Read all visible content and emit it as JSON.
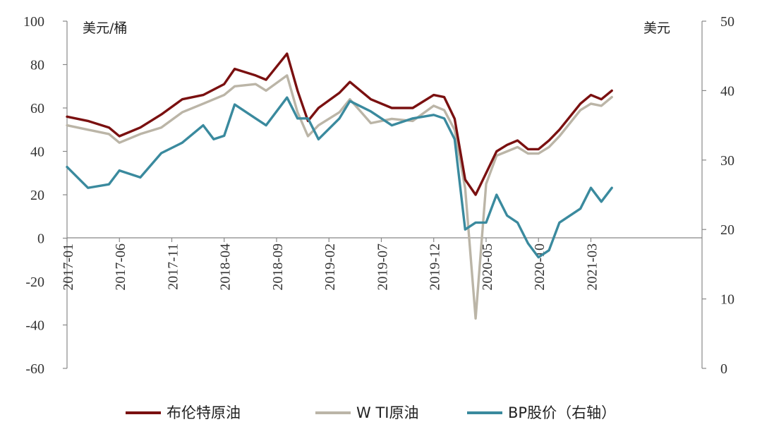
{
  "chart_data": {
    "type": "line",
    "left_axis": {
      "unit": "美元/桶",
      "range": [
        -60,
        100
      ],
      "ticks": [
        "100",
        "80",
        "60",
        "40",
        "20",
        "0",
        "-20",
        "-40",
        "-60"
      ]
    },
    "right_axis": {
      "unit": "美元",
      "range": [
        0,
        50
      ],
      "ticks": [
        "50",
        "40",
        "30",
        "20",
        "10",
        "0"
      ]
    },
    "x_axis": {
      "ticks": [
        "2017-01",
        "2017-06",
        "2017-11",
        "2018-04",
        "2018-09",
        "2019-02",
        "2019-07",
        "2019-12",
        "2020-05",
        "2020-10",
        "2021-03"
      ]
    },
    "grid": false,
    "legend_position": "bottom",
    "series": [
      {
        "name": "布伦特原油",
        "axis": "left",
        "color": "#7a1010",
        "points": [
          [
            "2017-01",
            56
          ],
          [
            "2017-03",
            54
          ],
          [
            "2017-05",
            51
          ],
          [
            "2017-06",
            47
          ],
          [
            "2017-08",
            51
          ],
          [
            "2017-10",
            57
          ],
          [
            "2017-12",
            64
          ],
          [
            "2018-02",
            66
          ],
          [
            "2018-04",
            71
          ],
          [
            "2018-05",
            78
          ],
          [
            "2018-07",
            75
          ],
          [
            "2018-08",
            73
          ],
          [
            "2018-10",
            85
          ],
          [
            "2018-11",
            68
          ],
          [
            "2018-12",
            54
          ],
          [
            "2019-01",
            60
          ],
          [
            "2019-03",
            67
          ],
          [
            "2019-04",
            72
          ],
          [
            "2019-06",
            64
          ],
          [
            "2019-08",
            60
          ],
          [
            "2019-10",
            60
          ],
          [
            "2019-12",
            66
          ],
          [
            "2020-01",
            65
          ],
          [
            "2020-02",
            55
          ],
          [
            "2020-03",
            27
          ],
          [
            "2020-04",
            20
          ],
          [
            "2020-05",
            30
          ],
          [
            "2020-06",
            40
          ],
          [
            "2020-07",
            43
          ],
          [
            "2020-08",
            45
          ],
          [
            "2020-09",
            41
          ],
          [
            "2020-10",
            41
          ],
          [
            "2020-11",
            45
          ],
          [
            "2020-12",
            50
          ],
          [
            "2021-02",
            62
          ],
          [
            "2021-03",
            66
          ],
          [
            "2021-04",
            64
          ],
          [
            "2021-05",
            68
          ]
        ]
      },
      {
        "name": "W TI原油",
        "axis": "left",
        "color": "#bbb5a7",
        "points": [
          [
            "2017-01",
            52
          ],
          [
            "2017-03",
            50
          ],
          [
            "2017-05",
            48
          ],
          [
            "2017-06",
            44
          ],
          [
            "2017-08",
            48
          ],
          [
            "2017-10",
            51
          ],
          [
            "2017-12",
            58
          ],
          [
            "2018-02",
            62
          ],
          [
            "2018-04",
            66
          ],
          [
            "2018-05",
            70
          ],
          [
            "2018-07",
            71
          ],
          [
            "2018-08",
            68
          ],
          [
            "2018-10",
            75
          ],
          [
            "2018-11",
            58
          ],
          [
            "2018-12",
            47
          ],
          [
            "2019-01",
            52
          ],
          [
            "2019-03",
            58
          ],
          [
            "2019-04",
            64
          ],
          [
            "2019-06",
            53
          ],
          [
            "2019-08",
            55
          ],
          [
            "2019-10",
            54
          ],
          [
            "2019-12",
            61
          ],
          [
            "2020-01",
            59
          ],
          [
            "2020-02",
            50
          ],
          [
            "2020-03",
            23
          ],
          [
            "2020-04",
            -37
          ],
          [
            "2020-05",
            25
          ],
          [
            "2020-06",
            38
          ],
          [
            "2020-07",
            40
          ],
          [
            "2020-08",
            42
          ],
          [
            "2020-09",
            39
          ],
          [
            "2020-10",
            39
          ],
          [
            "2020-11",
            42
          ],
          [
            "2020-12",
            47
          ],
          [
            "2021-02",
            59
          ],
          [
            "2021-03",
            62
          ],
          [
            "2021-04",
            61
          ],
          [
            "2021-05",
            65
          ]
        ]
      },
      {
        "name": "BP股价（右轴）",
        "axis": "right",
        "color": "#3a8a9e",
        "points": [
          [
            "2017-01",
            29
          ],
          [
            "2017-03",
            26
          ],
          [
            "2017-05",
            26.5
          ],
          [
            "2017-06",
            28.5
          ],
          [
            "2017-08",
            27.5
          ],
          [
            "2017-10",
            31
          ],
          [
            "2017-12",
            32.5
          ],
          [
            "2018-02",
            35
          ],
          [
            "2018-03",
            33
          ],
          [
            "2018-04",
            33.5
          ],
          [
            "2018-05",
            38
          ],
          [
            "2018-07",
            36
          ],
          [
            "2018-08",
            35
          ],
          [
            "2018-10",
            39
          ],
          [
            "2018-11",
            36
          ],
          [
            "2018-12",
            36
          ],
          [
            "2019-01",
            33
          ],
          [
            "2019-03",
            36
          ],
          [
            "2019-04",
            38.5
          ],
          [
            "2019-06",
            37
          ],
          [
            "2019-08",
            35
          ],
          [
            "2019-10",
            36
          ],
          [
            "2019-12",
            36.5
          ],
          [
            "2020-01",
            36
          ],
          [
            "2020-02",
            33
          ],
          [
            "2020-03",
            20
          ],
          [
            "2020-04",
            21
          ],
          [
            "2020-05",
            21
          ],
          [
            "2020-06",
            25
          ],
          [
            "2020-07",
            22
          ],
          [
            "2020-08",
            21
          ],
          [
            "2020-09",
            18
          ],
          [
            "2020-10",
            16
          ],
          [
            "2020-11",
            17
          ],
          [
            "2020-12",
            21
          ],
          [
            "2021-02",
            23
          ],
          [
            "2021-03",
            26
          ],
          [
            "2021-04",
            24
          ],
          [
            "2021-05",
            26
          ]
        ]
      }
    ]
  }
}
